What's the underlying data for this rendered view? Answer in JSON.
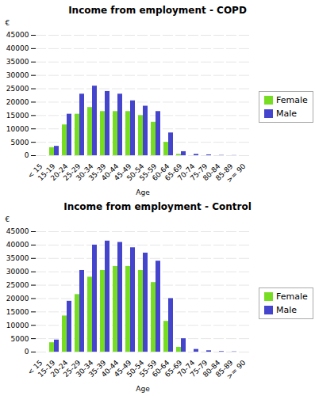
{
  "chart_data": [
    {
      "type": "bar",
      "title": "Income from employment - COPD",
      "categories": [
        "< 15",
        "15-19",
        "20-24",
        "25-29",
        "30-34",
        "35-39",
        "40-44",
        "45-49",
        "50-54",
        "55-59",
        "60-64",
        "65-69",
        "70-74",
        "75-79",
        "80-84",
        "85-89",
        ">= 90"
      ],
      "series": [
        {
          "name": "Female",
          "color": "#77dd22",
          "values": [
            0,
            3000,
            11500,
            15500,
            18000,
            16500,
            16500,
            16500,
            15000,
            12500,
            5000,
            500,
            0,
            0,
            0,
            0,
            0
          ]
        },
        {
          "name": "Male",
          "color": "#4444cc",
          "values": [
            0,
            3500,
            15500,
            23000,
            26000,
            24000,
            23000,
            20500,
            18500,
            16500,
            8500,
            1500,
            500,
            300,
            100,
            50,
            0
          ]
        }
      ],
      "xlabel": "Age",
      "ylabel": "€",
      "ylim": [
        0,
        45000
      ],
      "yticks": [
        0,
        5000,
        10000,
        15000,
        20000,
        25000,
        30000,
        35000,
        40000,
        45000
      ],
      "grid": true,
      "legend": "right"
    },
    {
      "type": "bar",
      "title": "Income from employment - Control",
      "categories": [
        "< 15",
        "15-19",
        "20-24",
        "25-29",
        "30-34",
        "35-39",
        "40-44",
        "45-49",
        "50-54",
        "55-59",
        "60-64",
        "65-69",
        "70-74",
        "75-79",
        "80-84",
        "85-89",
        ">= 90"
      ],
      "series": [
        {
          "name": "Female",
          "color": "#77dd22",
          "values": [
            0,
            3500,
            13500,
            21500,
            28000,
            30500,
            32000,
            32000,
            30500,
            26000,
            11500,
            1800,
            0,
            0,
            0,
            0,
            0
          ]
        },
        {
          "name": "Male",
          "color": "#4444cc",
          "values": [
            0,
            4500,
            19000,
            30500,
            40000,
            41500,
            41000,
            39000,
            37000,
            34000,
            20000,
            5000,
            1000,
            500,
            200,
            100,
            0
          ]
        }
      ],
      "xlabel": "Age",
      "ylabel": "€",
      "ylim": [
        0,
        45000
      ],
      "yticks": [
        0,
        5000,
        10000,
        15000,
        20000,
        25000,
        30000,
        35000,
        40000,
        45000
      ],
      "grid": true,
      "legend": "right"
    }
  ]
}
